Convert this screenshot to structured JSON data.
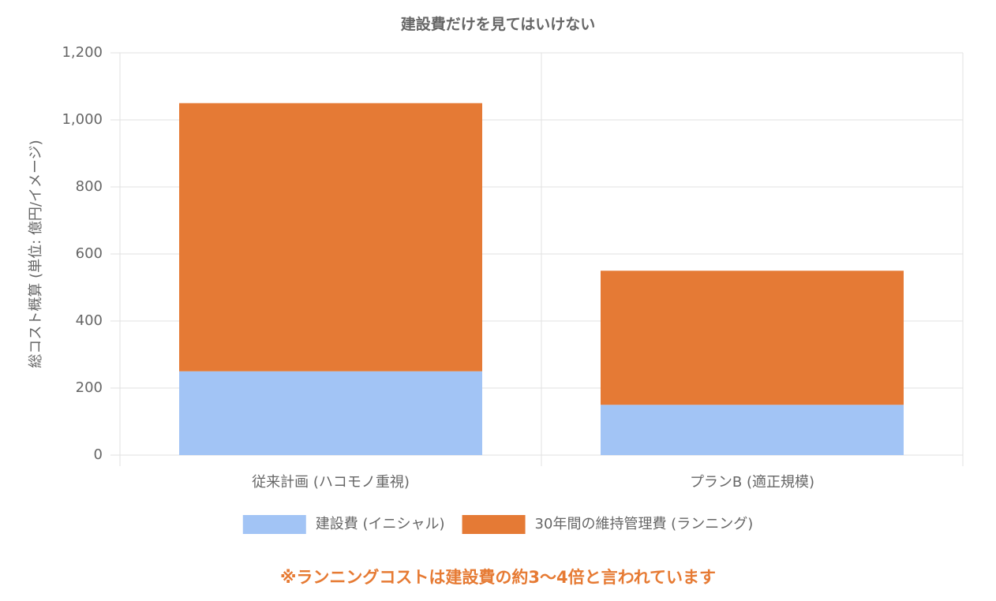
{
  "chart_data": {
    "type": "bar",
    "stacked": true,
    "title": "建設費だけを見てはいけない",
    "ylabel": "総コスト概算 (単位: 億円/イメージ)",
    "xlabel": "",
    "categories": [
      "従来計画 (ハコモノ重視)",
      "プランB (適正規模)"
    ],
    "series": [
      {
        "name": "建設費 (イニシャル)",
        "values": [
          250,
          150
        ],
        "color": "#a2c4f5"
      },
      {
        "name": "30年間の維持管理費 (ランニング)",
        "values": [
          800,
          400
        ],
        "color": "#e57a35"
      }
    ],
    "ylim": [
      0,
      1200
    ],
    "yticks": [
      0,
      200,
      400,
      600,
      800,
      1000,
      1200
    ],
    "ytick_labels": [
      "0",
      "200",
      "400",
      "600",
      "800",
      "1,000",
      "1,200"
    ],
    "grid": true,
    "legend_position": "bottom"
  },
  "footnote": "※ランニングコストは建設費の約3〜4倍と言われています",
  "colors": {
    "grid": "#e2e2e2",
    "axis_text": "#666666",
    "footnote": "#e67a33"
  }
}
